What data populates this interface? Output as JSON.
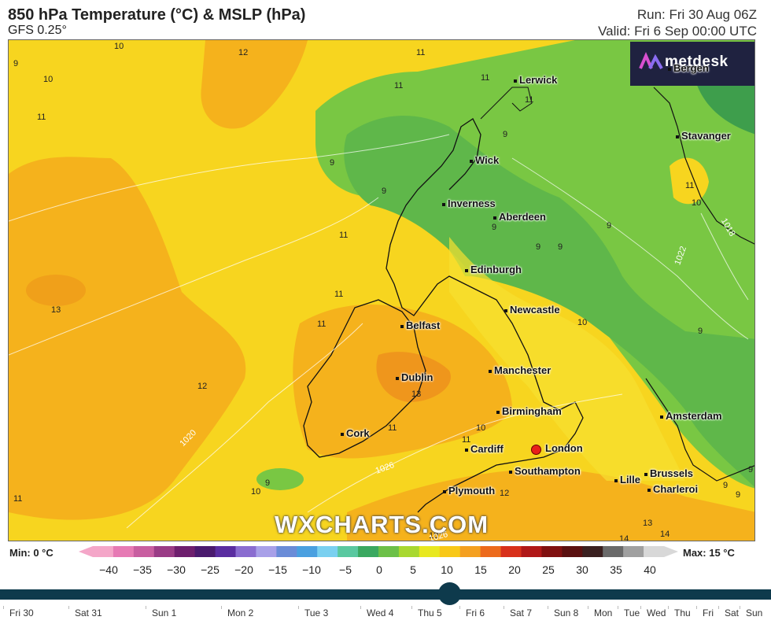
{
  "header": {
    "title": "850 hPa Temperature (°C) & MSLP (hPa)",
    "model": "GFS 0.25°",
    "run": "Run: Fri 30 Aug 06Z",
    "valid": "Valid: Fri 6 Sep 00:00 UTC"
  },
  "brand": {
    "name": "metdesk"
  },
  "watermark": "WXCHARTS.COM",
  "cities": [
    "Lerwick",
    "Bergen",
    "Stavanger",
    "Wick",
    "Inverness",
    "Aberdeen",
    "Edinburgh",
    "Newcastle",
    "Belfast",
    "Dublin",
    "Manchester",
    "Birmingham",
    "Amsterdam",
    "Cork",
    "Cardiff",
    "London",
    "Southampton",
    "Plymouth",
    "Lille",
    "Brussels",
    "Charleroi"
  ],
  "isotherm_labels": [
    "10",
    "9",
    "10",
    "11",
    "12",
    "11",
    "11",
    "11",
    "11",
    "9",
    "9",
    "9",
    "9",
    "9",
    "9",
    "9",
    "11",
    "10",
    "11",
    "13",
    "11",
    "11",
    "13",
    "12",
    "11",
    "10",
    "10",
    "11",
    "9",
    "10",
    "11",
    "12",
    "10",
    "13",
    "14",
    "14",
    "9",
    "9",
    "9",
    "9"
  ],
  "isobar_labels": [
    "1018",
    "1022",
    "1020",
    "1026",
    "1026"
  ],
  "scale": {
    "min_label": "Min: 0 °C",
    "max_label": "Max: 15 °C",
    "ticks": [
      "−40",
      "−35",
      "−30",
      "−25",
      "−20",
      "−15",
      "−10",
      "−5",
      "0",
      "5",
      "10",
      "15",
      "20",
      "25",
      "30",
      "35",
      "40"
    ],
    "colors": [
      "#f4a6c8",
      "#e67ab4",
      "#c85ea0",
      "#9a3c86",
      "#6e1f6e",
      "#4a1a6e",
      "#5a2da0",
      "#8a6cd0",
      "#a8a0e8",
      "#6a8cd8",
      "#4aa0e0",
      "#7ad0f0",
      "#5ac8a0",
      "#3aa860",
      "#6cc048",
      "#a8d830",
      "#e8e820",
      "#f8c818",
      "#f4a020",
      "#ec6a1c",
      "#d8301a",
      "#b01818",
      "#801010",
      "#5a1010",
      "#3a2020",
      "#6a6a6a",
      "#a0a0a0",
      "#d8d8d8"
    ]
  },
  "timeline": {
    "days": [
      "Fri 30",
      "Sat 31",
      "Sun 1",
      "Mon 2",
      "Tue 3",
      "Wed 4",
      "Thu 5",
      "Fri 6",
      "Sat 7",
      "Sun 8",
      "Mon",
      "Tue",
      "Wed",
      "Thu",
      "Fri",
      "Sat",
      "Sun"
    ],
    "selected": "Fri 6"
  }
}
